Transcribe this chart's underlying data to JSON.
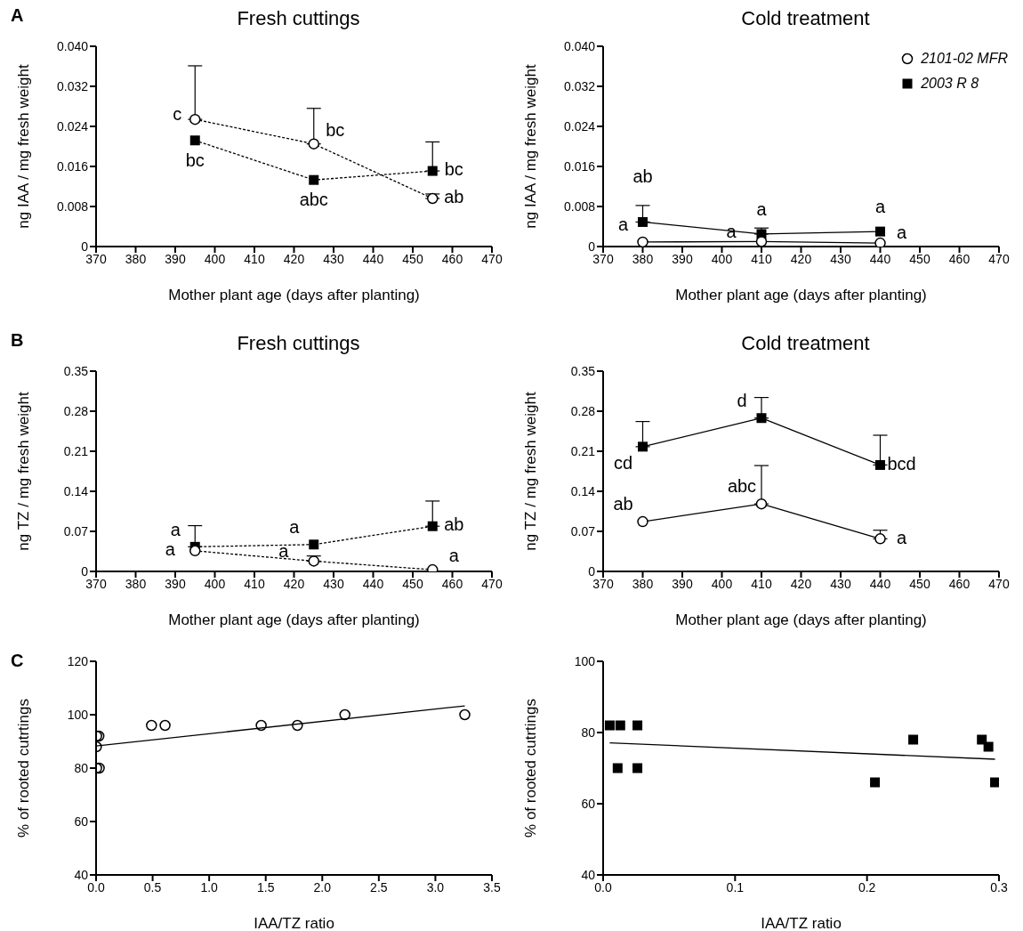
{
  "chart_data": [
    {
      "type": "line",
      "title": "Fresh cuttings",
      "xlabel": "Mother plant age (days after planting)",
      "ylabel": "ng IAA / mg fresh weight",
      "x": [
        395,
        425,
        455
      ],
      "line_style": "dotted",
      "xlim": [
        370,
        470
      ],
      "xticks": [
        370,
        380,
        390,
        400,
        410,
        420,
        430,
        440,
        450,
        460,
        470
      ],
      "ylim": [
        0,
        0.04
      ],
      "yticks": [
        0,
        0.008,
        0.016,
        0.024,
        0.032,
        {
          "value": 0.04,
          "label": "0.040"
        }
      ],
      "series": [
        {
          "color": "#000000",
          "marker": "circle",
          "values": [
            0.0254,
            0.0205,
            0.0096
          ],
          "errors": [
            [
              0.0254,
              0.0361
            ],
            [
              0.0205,
              0.0276
            ],
            [
              0.0096,
              0.0105
            ]
          ]
        },
        {
          "color": "#000000",
          "marker": "square",
          "values": [
            0.0212,
            0.0133,
            0.0151
          ],
          "errors": [
            null,
            null,
            [
              0.0151,
              0.0209
            ]
          ]
        }
      ],
      "annotations": [
        "A",
        {
          "text": "c",
          "x": 395,
          "y": 0.0254
        },
        {
          "text": "bc",
          "x": 395,
          "y": 0.0212
        },
        {
          "text": "bc",
          "x": 425,
          "y": 0.0205
        },
        {
          "text": "abc",
          "x": 425,
          "y": 0.0133
        },
        {
          "text": "bc",
          "x": 455,
          "y": 0.0151
        },
        {
          "text": "ab",
          "x": 455,
          "y": 0.0096
        }
      ]
    },
    {
      "type": "line",
      "title": "Cold treatment",
      "xlabel": "Mother plant age (days after planting)",
      "ylabel": "ng IAA / mg fresh weight",
      "x": [
        380,
        410,
        440
      ],
      "line_style": "solid",
      "legend": "top right",
      "xlim": [
        370,
        470
      ],
      "xticks": [
        370,
        380,
        390,
        400,
        410,
        420,
        430,
        440,
        450,
        460,
        470
      ],
      "ylim": [
        0,
        0.04
      ],
      "yticks": [
        0,
        0.008,
        0.016,
        0.024,
        0.032,
        {
          "value": 0.04,
          "label": "0.040"
        }
      ],
      "series": [
        {
          "name": "2101-02 MFR",
          "color": "#000000",
          "marker": "circle",
          "values": [
            0.0009,
            0.001,
            0.0007
          ]
        },
        {
          "name": "2003 R 8",
          "color": "#000000",
          "marker": "square",
          "values": [
            0.0049,
            0.0025,
            0.003
          ],
          "errors": [
            [
              0.0049,
              0.0082
            ],
            [
              0.0025,
              0.0037
            ],
            null
          ]
        }
      ],
      "annotations": [
        {
          "text": "ab",
          "x": 380,
          "y": 0.0049
        },
        {
          "text": "a",
          "x": 380,
          "y": 0.0009
        },
        {
          "text": "a",
          "x": 410,
          "y": 0.0025
        },
        {
          "text": "a",
          "x": 410,
          "y": 0.001
        },
        {
          "text": "a",
          "x": 440,
          "y": 0.003
        },
        {
          "text": "a",
          "x": 440,
          "y": 0.0007
        }
      ]
    },
    {
      "type": "line",
      "title": "Fresh cuttings",
      "xlabel": "Mother plant age (days after planting)",
      "ylabel": "ng TZ / mg fresh weight",
      "x": [
        395,
        425,
        455
      ],
      "line_style": "dotted",
      "xlim": [
        370,
        470
      ],
      "xticks": [
        370,
        380,
        390,
        400,
        410,
        420,
        430,
        440,
        450,
        460,
        470
      ],
      "ylim": [
        0,
        0.35
      ],
      "yticks": [
        0,
        0.07,
        0.14,
        0.21,
        0.28,
        0.35
      ],
      "series": [
        {
          "color": "#000000",
          "marker": "circle",
          "values": [
            0.036,
            0.018,
            0.003
          ],
          "errors": [
            null,
            [
              0.018,
              0.027
            ],
            null
          ]
        },
        {
          "color": "#000000",
          "marker": "square",
          "values": [
            0.043,
            0.047,
            0.079
          ],
          "errors": [
            [
              0.043,
              0.08
            ],
            null,
            [
              0.079,
              0.123
            ]
          ]
        }
      ],
      "annotations": [
        "B",
        {
          "text": "a",
          "x": 395,
          "y": 0.043
        },
        {
          "text": "a",
          "x": 395,
          "y": 0.036
        },
        {
          "text": "a",
          "x": 425,
          "y": 0.047
        },
        {
          "text": "a",
          "x": 425,
          "y": 0.018
        },
        {
          "text": "ab",
          "x": 455,
          "y": 0.079
        },
        {
          "text": "a",
          "x": 455,
          "y": 0.003
        }
      ]
    },
    {
      "type": "line",
      "title": "Cold treatment",
      "xlabel": "Mother plant age (days after planting)",
      "ylabel": "ng TZ / mg fresh weight",
      "x": [
        380,
        410,
        440
      ],
      "line_style": "solid",
      "xlim": [
        370,
        470
      ],
      "xticks": [
        370,
        380,
        390,
        400,
        410,
        420,
        430,
        440,
        450,
        460,
        470
      ],
      "ylim": [
        0,
        0.35
      ],
      "yticks": [
        0,
        0.07,
        0.14,
        0.21,
        0.28,
        0.35
      ],
      "series": [
        {
          "color": "#000000",
          "marker": "circle",
          "values": [
            0.087,
            0.118,
            0.057
          ],
          "errors": [
            null,
            [
              0.118,
              0.185
            ],
            [
              0.057,
              0.072
            ]
          ]
        },
        {
          "color": "#000000",
          "marker": "square",
          "values": [
            0.218,
            0.268,
            0.186
          ],
          "errors": [
            [
              0.218,
              0.262
            ],
            [
              0.268,
              0.304
            ],
            [
              0.186,
              0.238
            ]
          ]
        }
      ],
      "annotations": [
        {
          "text": "cd",
          "x": 380,
          "y": 0.218
        },
        {
          "text": "d",
          "x": 410,
          "y": 0.268
        },
        {
          "text": "bcd",
          "x": 440,
          "y": 0.186
        },
        {
          "text": "ab",
          "x": 380,
          "y": 0.087
        },
        {
          "text": "abc",
          "x": 410,
          "y": 0.118
        },
        {
          "text": "a",
          "x": 440,
          "y": 0.057
        }
      ]
    },
    {
      "type": "scatter",
      "xlabel": "IAA/TZ ratio",
      "ylabel": "% of rooted cutrtings",
      "xlim": [
        0,
        3.5
      ],
      "xticks": [
        {
          "value": 0,
          "label": "0.0"
        },
        0.5,
        {
          "value": 1,
          "label": "1.0"
        },
        1.5,
        {
          "value": 2,
          "label": "2.0"
        },
        2.5,
        {
          "value": 3,
          "label": "3.0"
        },
        3.5
      ],
      "ylim": [
        40,
        120
      ],
      "yticks": [
        40,
        60,
        80,
        100,
        120
      ],
      "series": [
        {
          "color": "#000000",
          "marker": "circle",
          "x": [
            0.005,
            0.025,
            0.003,
            0.005,
            0.028,
            0.49,
            0.61,
            1.46,
            1.78,
            2.2,
            3.26
          ],
          "values": [
            92,
            92,
            88,
            80,
            80,
            96,
            96,
            96,
            96,
            100,
            100
          ]
        },
        {
          "type": "line",
          "color": "#000000",
          "marker": "none",
          "x": [
            0,
            3.26
          ],
          "values": [
            88.3,
            103.3
          ]
        }
      ],
      "annotations": [
        "C"
      ]
    },
    {
      "type": "scatter",
      "xlabel": "IAA/TZ ratio",
      "ylabel": "% of rooted cutrtings",
      "xlim": [
        0,
        0.3
      ],
      "xticks": [
        {
          "value": 0,
          "label": "0.0"
        },
        0.1,
        0.2,
        0.3
      ],
      "ylim": [
        40,
        100
      ],
      "yticks": [
        40,
        60,
        80,
        100
      ],
      "series": [
        {
          "color": "#000000",
          "marker": "square",
          "x": [
            0.005,
            0.013,
            0.026,
            0.011,
            0.026,
            0.206,
            0.235,
            0.287,
            0.292,
            0.297
          ],
          "values": [
            82,
            82,
            82,
            70,
            70,
            66,
            78,
            78,
            76,
            66
          ]
        },
        {
          "type": "line",
          "color": "#000000",
          "marker": "none",
          "x": [
            0.005,
            0.297
          ],
          "values": [
            77.1,
            72.5
          ]
        }
      ]
    }
  ]
}
